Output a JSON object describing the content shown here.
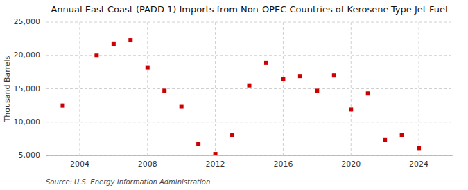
{
  "chart_data": {
    "type": "scatter",
    "title": "Annual East Coast (PADD 1) Imports from Non-OPEC Countries of Kerosene-Type Jet Fuel",
    "ylabel": "Thousand Barrels",
    "source": "Source: U.S. Energy Information Administration",
    "x": [
      2003,
      2005,
      2006,
      2007,
      2008,
      2009,
      2010,
      2011,
      2012,
      2013,
      2014,
      2015,
      2016,
      2017,
      2018,
      2019,
      2020,
      2021,
      2022,
      2023,
      2024
    ],
    "values": [
      12500,
      20000,
      21700,
      22300,
      18200,
      14700,
      12300,
      6700,
      5200,
      8100,
      15500,
      18900,
      16500,
      16900,
      14700,
      17000,
      11900,
      14300,
      7300,
      8100,
      6100
    ],
    "color": "#cc0000",
    "marker": "square",
    "xlim": [
      2002,
      2026
    ],
    "xticks": [
      2004,
      2008,
      2012,
      2016,
      2020,
      2024
    ],
    "ylim": [
      5000,
      25000
    ],
    "yticks": [
      {
        "value": 5000,
        "label": "5,000"
      },
      {
        "value": 10000,
        "label": "10,000"
      },
      {
        "value": 15000,
        "label": "15,000"
      },
      {
        "value": 20000,
        "label": "20,000"
      },
      {
        "value": 25000,
        "label": "25,000"
      }
    ],
    "grid": true
  }
}
